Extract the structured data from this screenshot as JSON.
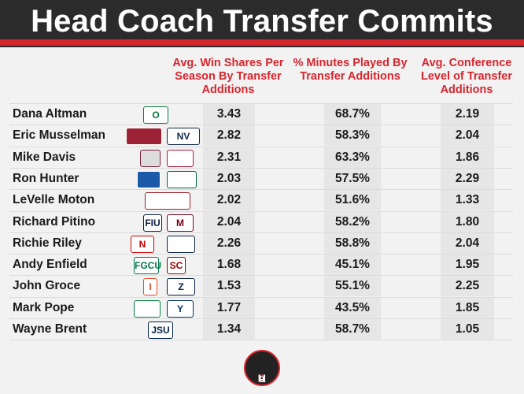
{
  "title": "Head Coach Transfer Commits",
  "columns": [
    "Avg. Win Shares Per Season By Transfer Additions",
    "% Minutes Played By Transfer Additions",
    "Avg. Conference Level of Transfer Additions"
  ],
  "rows": [
    {
      "coach": "Dana Altman",
      "win_shares": "3.43",
      "minutes": "68.7%",
      "conf_level": "2.19"
    },
    {
      "coach": "Eric Musselman",
      "win_shares": "2.82",
      "minutes": "58.3%",
      "conf_level": "2.04"
    },
    {
      "coach": "Mike Davis",
      "win_shares": "2.31",
      "minutes": "63.3%",
      "conf_level": "1.86"
    },
    {
      "coach": "Ron Hunter",
      "win_shares": "2.03",
      "minutes": "57.5%",
      "conf_level": "2.29"
    },
    {
      "coach": "LeVelle Moton",
      "win_shares": "2.02",
      "minutes": "51.6%",
      "conf_level": "1.33"
    },
    {
      "coach": "Richard Pitino",
      "win_shares": "2.04",
      "minutes": "58.2%",
      "conf_level": "1.80"
    },
    {
      "coach": "Richie Riley",
      "win_shares": "2.26",
      "minutes": "58.8%",
      "conf_level": "2.04"
    },
    {
      "coach": "Andy Enfield",
      "win_shares": "1.68",
      "minutes": "45.1%",
      "conf_level": "1.95"
    },
    {
      "coach": "John Groce",
      "win_shares": "1.53",
      "minutes": "55.1%",
      "conf_level": "2.25"
    },
    {
      "coach": "Mark Pope",
      "win_shares": "1.77",
      "minutes": "43.5%",
      "conf_level": "1.85"
    },
    {
      "coach": "Wayne Brent",
      "win_shares": "1.34",
      "minutes": "58.7%",
      "conf_level": "1.05"
    }
  ],
  "footer_logo": {
    "text_a": "A",
    "text_d": "D",
    "text_u": "U"
  },
  "colors": {
    "accent": "#d6262e",
    "header_bg": "#2b2b2b",
    "cell_bg": "#e6e6e6"
  }
}
